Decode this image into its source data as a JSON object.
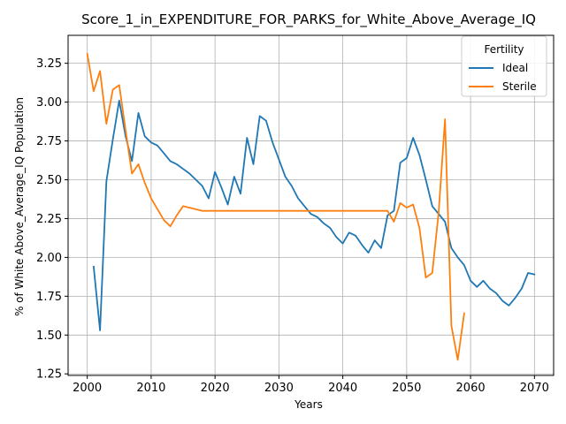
{
  "chart_data": {
    "type": "line",
    "title": "Score_1_in_EXPENDITURE_FOR_PARKS_for_White_Above_Average_IQ",
    "xlabel": "Years",
    "ylabel": "% of White Above_Average_IQ Population",
    "xlim": [
      1997,
      2073
    ],
    "ylim": [
      1.24,
      3.43
    ],
    "xticks": [
      2000,
      2010,
      2020,
      2030,
      2040,
      2050,
      2060,
      2070
    ],
    "yticks": [
      1.25,
      1.5,
      1.75,
      2.0,
      2.25,
      2.5,
      2.75,
      3.0,
      3.25
    ],
    "grid": true,
    "legend": {
      "title": "Fertility",
      "position": "top-right"
    },
    "series": [
      {
        "name": "Ideal",
        "color": "#1f77b4",
        "x": [
          2001,
          2002,
          2003,
          2004,
          2005,
          2006,
          2007,
          2008,
          2009,
          2010,
          2011,
          2012,
          2013,
          2014,
          2015,
          2016,
          2017,
          2018,
          2019,
          2020,
          2021,
          2022,
          2023,
          2024,
          2025,
          2026,
          2027,
          2028,
          2029,
          2030,
          2031,
          2032,
          2033,
          2034,
          2035,
          2036,
          2037,
          2038,
          2039,
          2040,
          2041,
          2042,
          2043,
          2044,
          2045,
          2046,
          2047,
          2048,
          2049,
          2050,
          2051,
          2052,
          2053,
          2054,
          2055,
          2056,
          2057,
          2058,
          2059,
          2060,
          2061,
          2062,
          2063,
          2064,
          2065,
          2066,
          2067,
          2068,
          2069,
          2070
        ],
        "y": [
          1.94,
          1.53,
          2.49,
          2.76,
          3.01,
          2.78,
          2.62,
          2.93,
          2.78,
          2.74,
          2.72,
          2.67,
          2.62,
          2.6,
          2.57,
          2.54,
          2.5,
          2.46,
          2.38,
          2.55,
          2.45,
          2.34,
          2.52,
          2.41,
          2.77,
          2.6,
          2.91,
          2.88,
          2.74,
          2.63,
          2.52,
          2.46,
          2.38,
          2.33,
          2.28,
          2.26,
          2.22,
          2.19,
          2.13,
          2.09,
          2.16,
          2.14,
          2.08,
          2.03,
          2.11,
          2.06,
          2.27,
          2.3,
          2.61,
          2.64,
          2.77,
          2.66,
          2.5,
          2.33,
          2.28,
          2.23,
          2.06,
          2.0,
          1.95,
          1.85,
          1.81,
          1.85,
          1.8,
          1.77,
          1.72,
          1.69,
          1.74,
          1.8,
          1.9,
          1.89
        ]
      },
      {
        "name": "Sterile",
        "color": "#ff7f0e",
        "x": [
          2000,
          2001,
          2002,
          2003,
          2004,
          2005,
          2006,
          2007,
          2008,
          2009,
          2010,
          2011,
          2012,
          2013,
          2014,
          2015,
          2016,
          2017,
          2018,
          2019,
          2020,
          2021,
          2022,
          2023,
          2024,
          2025,
          2026,
          2027,
          2028,
          2029,
          2030,
          2031,
          2032,
          2033,
          2034,
          2035,
          2036,
          2037,
          2038,
          2039,
          2040,
          2041,
          2042,
          2043,
          2044,
          2045,
          2046,
          2047,
          2048,
          2049,
          2050,
          2051,
          2052,
          2053,
          2054,
          2055,
          2056,
          2057,
          2058,
          2059
        ],
        "y": [
          3.31,
          3.07,
          3.2,
          2.86,
          3.08,
          3.11,
          2.82,
          2.54,
          2.6,
          2.48,
          2.38,
          2.31,
          2.24,
          2.2,
          2.27,
          2.33,
          2.32,
          2.31,
          2.3,
          2.3,
          2.3,
          2.3,
          2.3,
          2.3,
          2.3,
          2.3,
          2.3,
          2.3,
          2.3,
          2.3,
          2.3,
          2.3,
          2.3,
          2.3,
          2.3,
          2.3,
          2.3,
          2.3,
          2.3,
          2.3,
          2.3,
          2.3,
          2.3,
          2.3,
          2.3,
          2.3,
          2.3,
          2.3,
          2.23,
          2.35,
          2.32,
          2.34,
          2.19,
          1.87,
          1.9,
          2.29,
          2.89,
          1.56,
          1.34,
          1.64
        ]
      }
    ]
  }
}
